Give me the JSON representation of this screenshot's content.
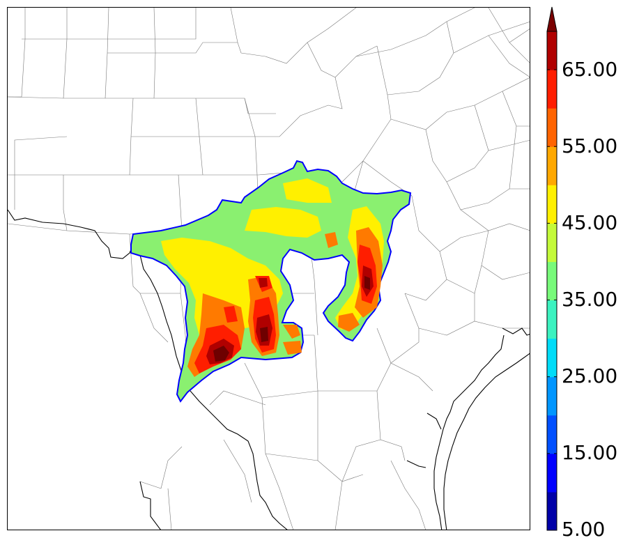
{
  "colorbar": {
    "levels": [
      5,
      10,
      15,
      20,
      25,
      30,
      35,
      40,
      45,
      50,
      55,
      60,
      65,
      70
    ],
    "colors": [
      "#0000a8",
      "#0000ff",
      "#0050ff",
      "#0096ff",
      "#00dcf8",
      "#3cf2c0",
      "#78fa7a",
      "#c4fa3a",
      "#fff000",
      "#ffa800",
      "#ff6400",
      "#ff1e00",
      "#b00000"
    ],
    "over_color": "#7a0000",
    "extend": "max",
    "tick_labels": [
      "5.00",
      "15.00",
      "25.00",
      "35.00",
      "45.00",
      "55.00",
      "65.00"
    ]
  },
  "map": {
    "background": "#ffffff",
    "county_line_color": "#555555",
    "border_line_color": "#000000",
    "field_region_edge_color": "#0000ff"
  }
}
